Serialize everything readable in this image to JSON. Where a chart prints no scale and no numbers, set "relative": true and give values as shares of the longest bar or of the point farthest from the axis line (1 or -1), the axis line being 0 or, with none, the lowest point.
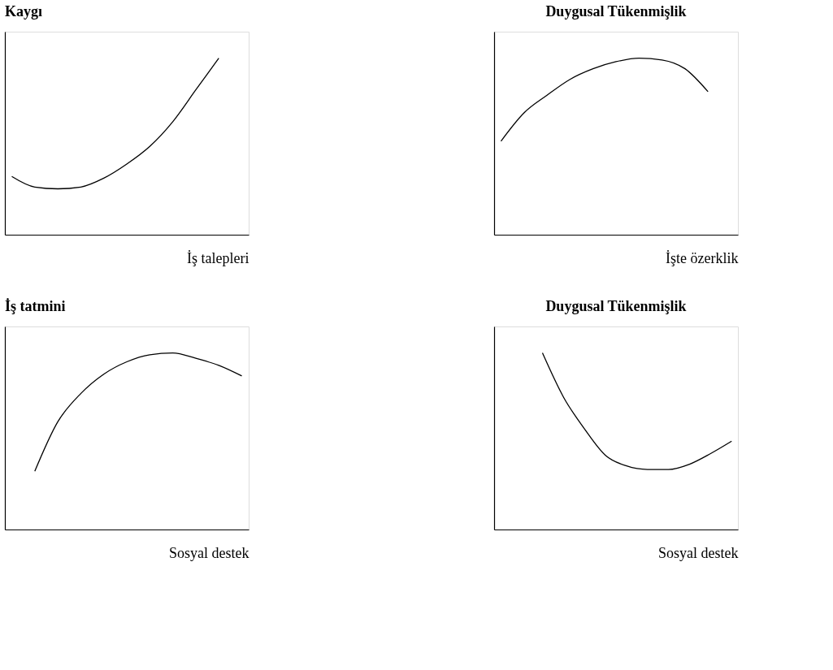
{
  "chart_data": [
    {
      "type": "line",
      "title": "Kaygı",
      "xlabel": "İş talepleri",
      "relative": true,
      "tick_labels": false,
      "categories": [
        null,
        null,
        null,
        null,
        null,
        null,
        null,
        null,
        null,
        null,
        null
      ],
      "series": [
        {
          "color": "#000000",
          "values": [
            0.33,
            0.27,
            0.26,
            0.27,
            0.32,
            0.4,
            0.5,
            0.64,
            0.82,
            1,
            null
          ]
        }
      ]
    },
    {
      "type": "line",
      "title": "Duygusal Tükenmişlik",
      "xlabel": "İşte özerklik",
      "relative": true,
      "tick_labels": false,
      "categories": [
        null,
        null,
        null,
        null,
        null,
        null,
        null,
        null,
        null,
        null,
        null
      ],
      "series": [
        {
          "color": "#000000",
          "values": [
            0.53,
            0.69,
            0.79,
            0.88,
            0.94,
            0.98,
            1,
            0.99,
            0.94,
            0.81,
            null
          ]
        }
      ]
    },
    {
      "type": "line",
      "title": "İş tatmini",
      "xlabel": "Sosyal destek",
      "relative": true,
      "tick_labels": false,
      "categories": [
        null,
        null,
        null,
        null,
        null,
        null,
        null,
        null,
        null,
        null,
        null
      ],
      "series": [
        {
          "color": "#000000",
          "values": [
            null,
            0.33,
            0.61,
            0.77,
            0.88,
            0.95,
            0.99,
            1,
            0.97,
            0.93,
            0.87
          ]
        }
      ]
    },
    {
      "type": "line",
      "title": "Duygusal Tükenmişlik",
      "xlabel": "Sosyal destek",
      "relative": true,
      "tick_labels": false,
      "categories": [
        null,
        null,
        null,
        null,
        null,
        null,
        null,
        null,
        null,
        null,
        null,
        null
      ],
      "series": [
        {
          "color": "#000000",
          "values": [
            null,
            null,
            1,
            0.75,
            0.57,
            0.42,
            0.36,
            0.34,
            0.34,
            0.37,
            0.43,
            0.5
          ]
        }
      ]
    }
  ]
}
